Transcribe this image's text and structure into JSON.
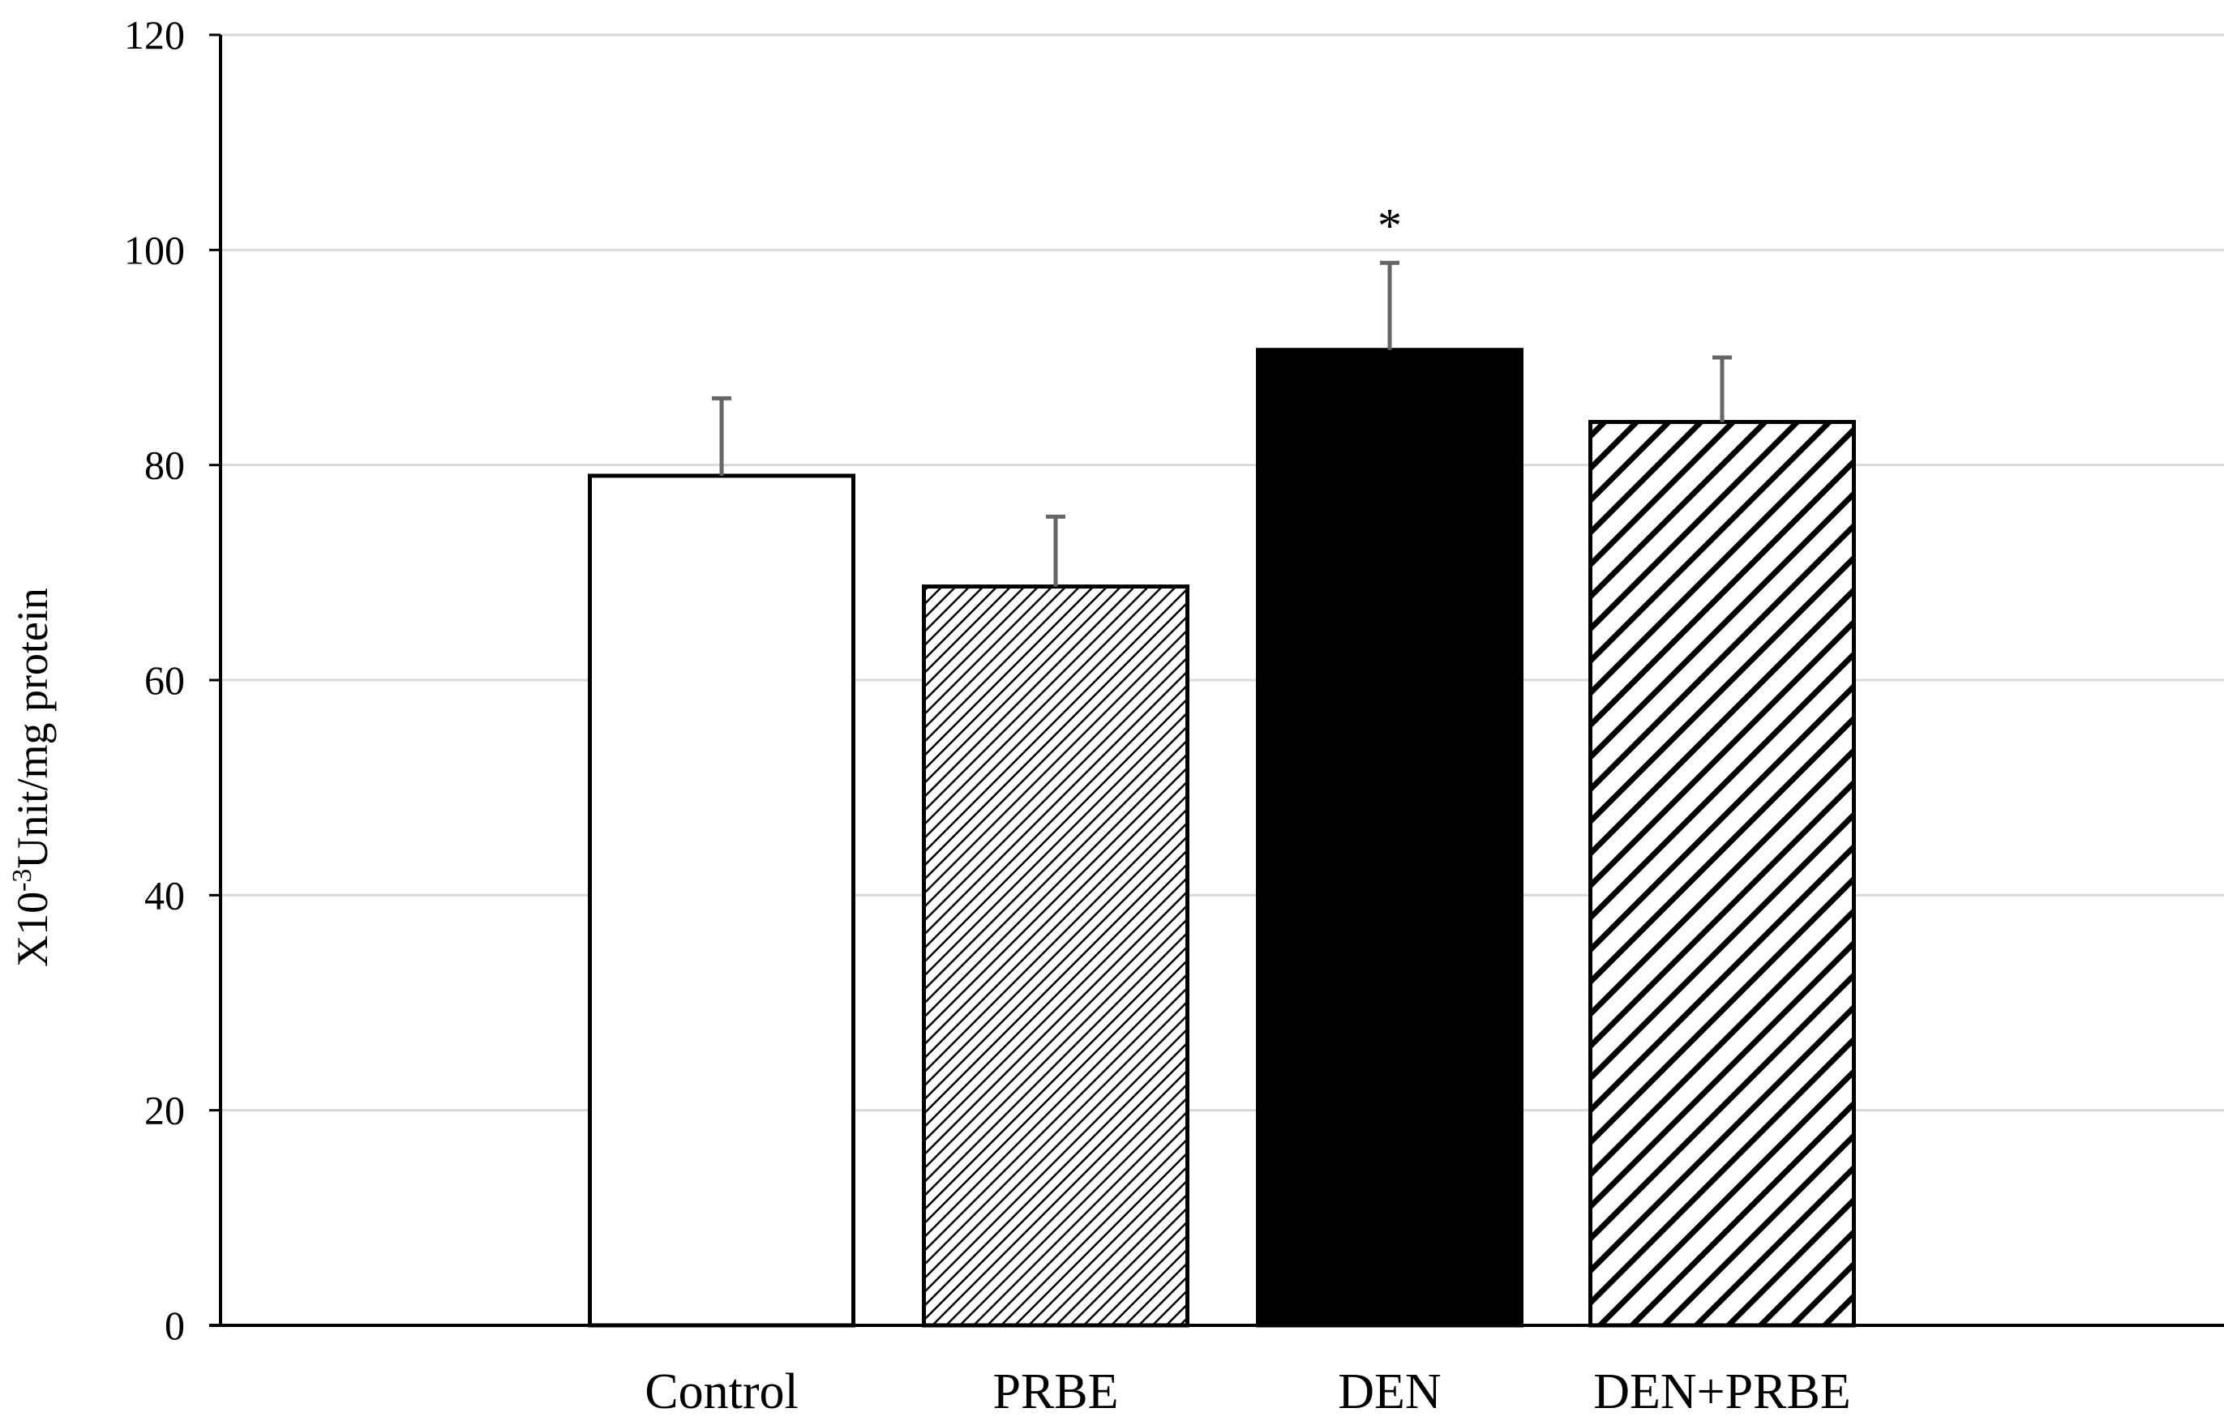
{
  "chart_data": {
    "type": "bar",
    "categories": [
      "Control",
      "PRBE",
      "DEN",
      "DEN+PRBE"
    ],
    "values": [
      79,
      68.7,
      90.7,
      84
    ],
    "errors": [
      7.2,
      6.5,
      8.1,
      6.0
    ],
    "fills": [
      "white",
      "fine-hatch",
      "solid-black",
      "wide-hatch"
    ],
    "ylabel": {
      "prefix": "X10",
      "superscript": "-3",
      "suffix": "Unit/mg protein"
    },
    "ylim": [
      0,
      120
    ],
    "yticks": [
      0,
      20,
      40,
      60,
      80,
      100,
      120
    ],
    "grid": true,
    "legend": "none",
    "annotations": [
      {
        "category": "DEN",
        "text": "*"
      }
    ],
    "colors": {
      "bar_outline": "#000000",
      "error_bar": "#666666",
      "grid": "#d9d9d9",
      "axis": "#000000"
    }
  }
}
